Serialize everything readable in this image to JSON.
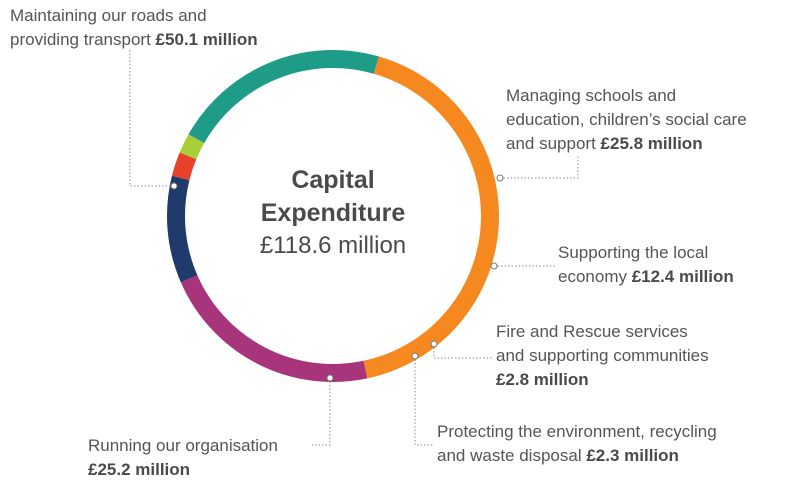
{
  "chart_data": {
    "type": "pie",
    "center": {
      "title_line1": "Capital",
      "title_line2": "Expenditure",
      "total": "£118.6 million"
    },
    "slices": [
      {
        "label_lines": [
          "Maintaining our roads and",
          "providing transport"
        ],
        "amount_label": "£50.1 million",
        "value": 50.1,
        "color": "#f5891f"
      },
      {
        "label_lines": [
          "Managing schools and",
          "education, children’s social care",
          "and support"
        ],
        "amount_label": "£25.8 million",
        "value": 25.8,
        "color": "#a8357c"
      },
      {
        "label_lines": [
          "Supporting the local",
          "economy"
        ],
        "amount_label": "£12.4 million",
        "value": 12.4,
        "color": "#1f3a6b"
      },
      {
        "label_lines": [
          "Fire and Rescue services",
          "and supporting communities"
        ],
        "amount_label": "£2.8 million",
        "value": 2.8,
        "color": "#e8412a"
      },
      {
        "label_lines": [
          "Protecting the environment, recycling",
          "and waste disposal"
        ],
        "amount_label": "£2.3 million",
        "value": 2.3,
        "color": "#a8cf38"
      },
      {
        "label_lines": [
          "Running our organisation"
        ],
        "amount_label": "£25.2 million",
        "value": 25.2,
        "color": "#1f9c87"
      }
    ]
  }
}
